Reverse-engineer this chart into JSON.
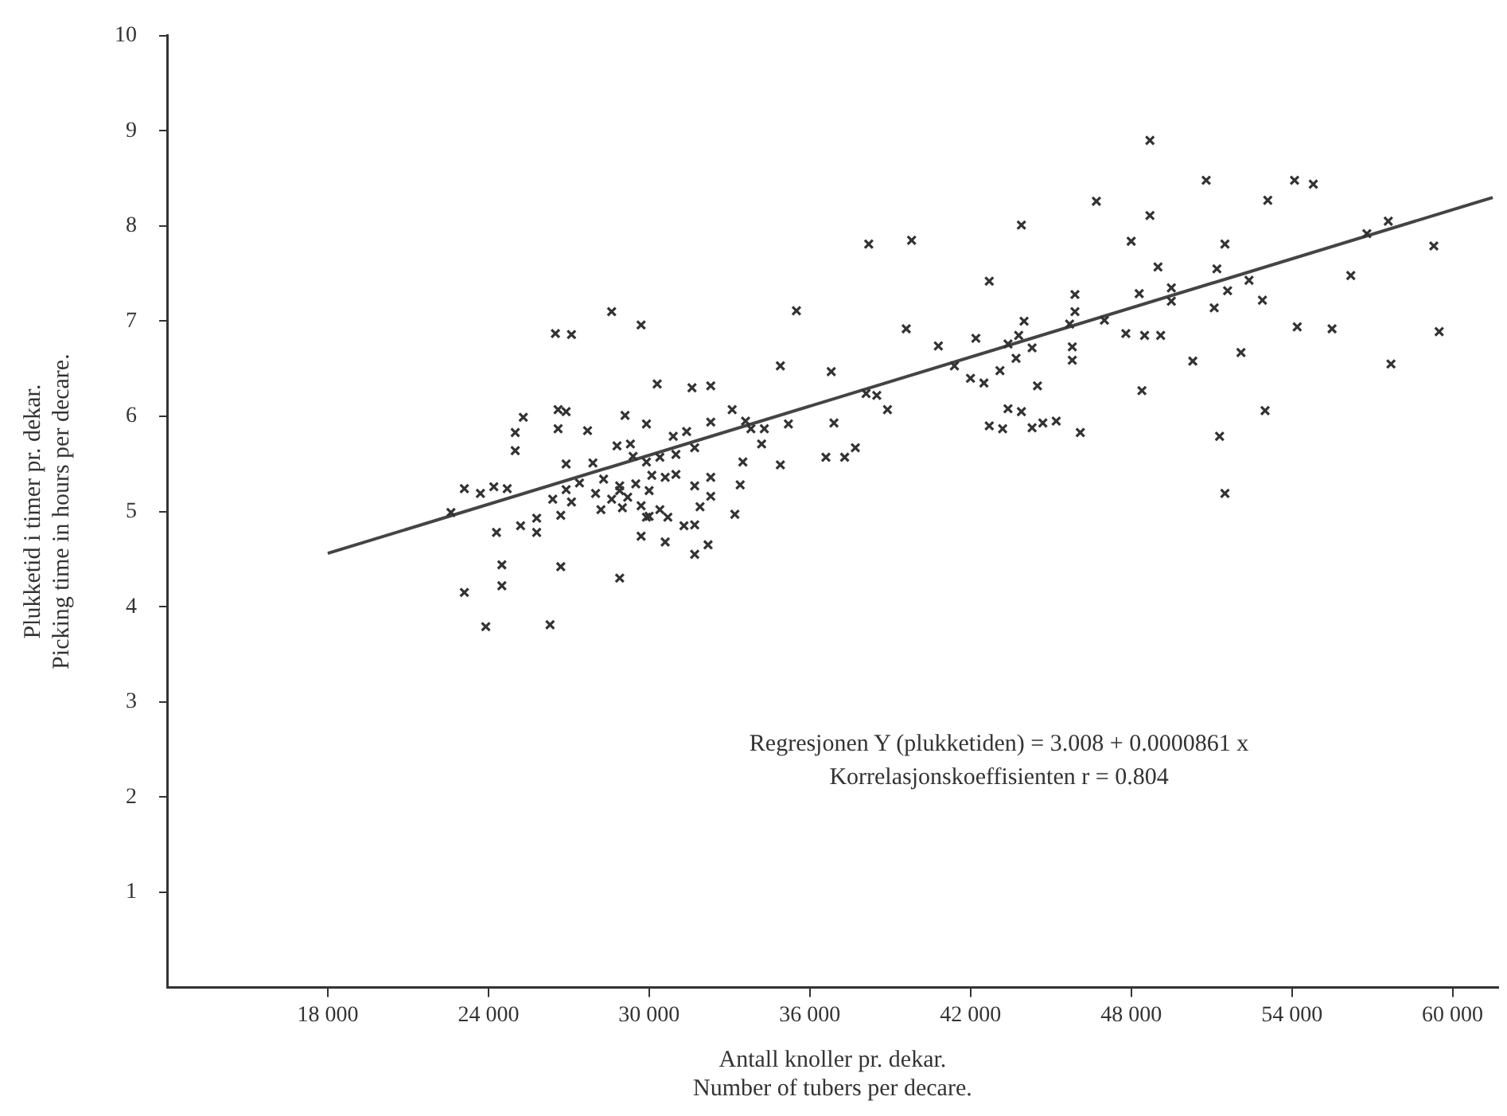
{
  "chart_data": {
    "type": "scatter",
    "xlabel": "Antall knoller pr. dekar.\nNumber of tubers per decare.",
    "ylabel": "Plukketid i timer pr. dekar.\nPicking time in hours per decare.",
    "annotations": [
      "Regresjonen Y (plukketiden) = 3.008 + 0.0000861 x",
      "Korrelasjonskoeffisienten r = 0.804"
    ],
    "xlim": [
      12000,
      61700
    ],
    "ylim": [
      0,
      10
    ],
    "xticks": [
      {
        "value": 18000,
        "label": "18 000"
      },
      {
        "value": 24000,
        "label": "24 000"
      },
      {
        "value": 30000,
        "label": "30 000"
      },
      {
        "value": 36000,
        "label": "36 000"
      },
      {
        "value": 42000,
        "label": "42 000"
      },
      {
        "value": 48000,
        "label": "48 000"
      },
      {
        "value": 54000,
        "label": "54 000"
      },
      {
        "value": 60000,
        "label": "60 000"
      }
    ],
    "yticks": [
      1,
      2,
      3,
      4,
      5,
      6,
      7,
      8,
      9,
      10
    ],
    "grid": false,
    "legend": false,
    "marker": "cross",
    "series": [
      {
        "color": "#333333",
        "x": [
          28600,
          26500,
          27100,
          29700,
          30300,
          31600,
          32300,
          25300,
          25000,
          26600,
          26900,
          26600,
          27700,
          29100,
          29900,
          25000,
          28800,
          29300,
          30900,
          31400,
          31700,
          32300,
          26900,
          27900,
          29400,
          29900,
          30400,
          31000,
          23100,
          23700,
          24200,
          24700,
          22600,
          26400,
          26900,
          27400,
          28300,
          28900,
          29500,
          30100,
          30600,
          31000,
          31700,
          32300,
          27100,
          28000,
          28600,
          28900,
          29200,
          30000,
          26700,
          28200,
          29000,
          29700,
          30000,
          30400,
          31900,
          32300,
          24300,
          25200,
          25800,
          25800,
          29900,
          30700,
          31300,
          31700,
          29700,
          30600,
          31700,
          32200,
          24500,
          26700,
          24500,
          23100,
          28900,
          23900,
          26300,
          46700,
          43900,
          38200,
          39800,
          42700,
          45900,
          45900,
          45700,
          44000,
          47000,
          35500,
          39600,
          40800,
          42200,
          43400,
          43800,
          44300,
          45800,
          45800,
          34900,
          36800,
          41400,
          42000,
          42500,
          43100,
          43700,
          44500,
          38100,
          38500,
          38900,
          33100,
          33600,
          33800,
          34300,
          35200,
          36900,
          34200,
          43400,
          43900,
          42700,
          43200,
          44300,
          44700,
          45200,
          46100,
          33500,
          34900,
          36600,
          37300,
          37700,
          48700,
          50800,
          54100,
          54800,
          53100,
          48700,
          48000,
          51500,
          56800,
          57600,
          59300,
          49000,
          51200,
          52400,
          56200,
          48300,
          49500,
          49500,
          51600,
          51100,
          52900,
          47800,
          48500,
          49100,
          54200,
          55500,
          59500,
          50300,
          52100,
          57700,
          48400,
          53000,
          51300,
          51500,
          33400,
          33200
        ],
        "values": [
          7.1,
          6.87,
          6.86,
          6.96,
          6.34,
          6.3,
          6.32,
          5.99,
          5.83,
          6.07,
          6.05,
          5.87,
          5.85,
          6.01,
          5.92,
          5.64,
          5.69,
          5.71,
          5.79,
          5.84,
          5.67,
          5.94,
          5.5,
          5.51,
          5.58,
          5.52,
          5.57,
          5.6,
          5.24,
          5.19,
          5.26,
          5.24,
          4.99,
          5.13,
          5.23,
          5.3,
          5.34,
          5.27,
          5.29,
          5.38,
          5.36,
          5.39,
          5.27,
          5.36,
          5.1,
          5.19,
          5.13,
          5.22,
          5.15,
          5.22,
          4.96,
          5.02,
          5.04,
          5.06,
          4.95,
          5.02,
          5.05,
          5.16,
          4.78,
          4.85,
          4.93,
          4.78,
          4.94,
          4.94,
          4.85,
          4.86,
          4.74,
          4.68,
          4.55,
          4.65,
          4.44,
          4.42,
          4.22,
          4.15,
          4.3,
          3.79,
          3.81,
          8.26,
          8.01,
          7.81,
          7.85,
          7.42,
          7.28,
          7.1,
          6.97,
          7.0,
          7.01,
          7.11,
          6.92,
          6.74,
          6.82,
          6.76,
          6.85,
          6.72,
          6.73,
          6.59,
          6.53,
          6.47,
          6.53,
          6.4,
          6.35,
          6.48,
          6.61,
          6.32,
          6.24,
          6.22,
          6.07,
          6.07,
          5.95,
          5.87,
          5.87,
          5.92,
          5.93,
          5.71,
          6.08,
          6.05,
          5.9,
          5.87,
          5.88,
          5.93,
          5.95,
          5.83,
          5.52,
          5.49,
          5.57,
          5.57,
          5.67,
          8.9,
          8.48,
          8.48,
          8.44,
          8.27,
          8.11,
          7.84,
          7.81,
          7.92,
          8.05,
          7.79,
          7.57,
          7.55,
          7.43,
          7.48,
          7.29,
          7.35,
          7.21,
          7.32,
          7.14,
          7.22,
          6.87,
          6.85,
          6.85,
          6.94,
          6.92,
          6.89,
          6.58,
          6.67,
          6.55,
          6.27,
          6.06,
          5.79,
          5.19,
          5.28,
          4.97
        ]
      },
      {
        "type": "line",
        "color": "#444444",
        "marker": "none",
        "x": [
          18000,
          61500
        ],
        "values": [
          4.56,
          8.3
        ]
      }
    ]
  }
}
